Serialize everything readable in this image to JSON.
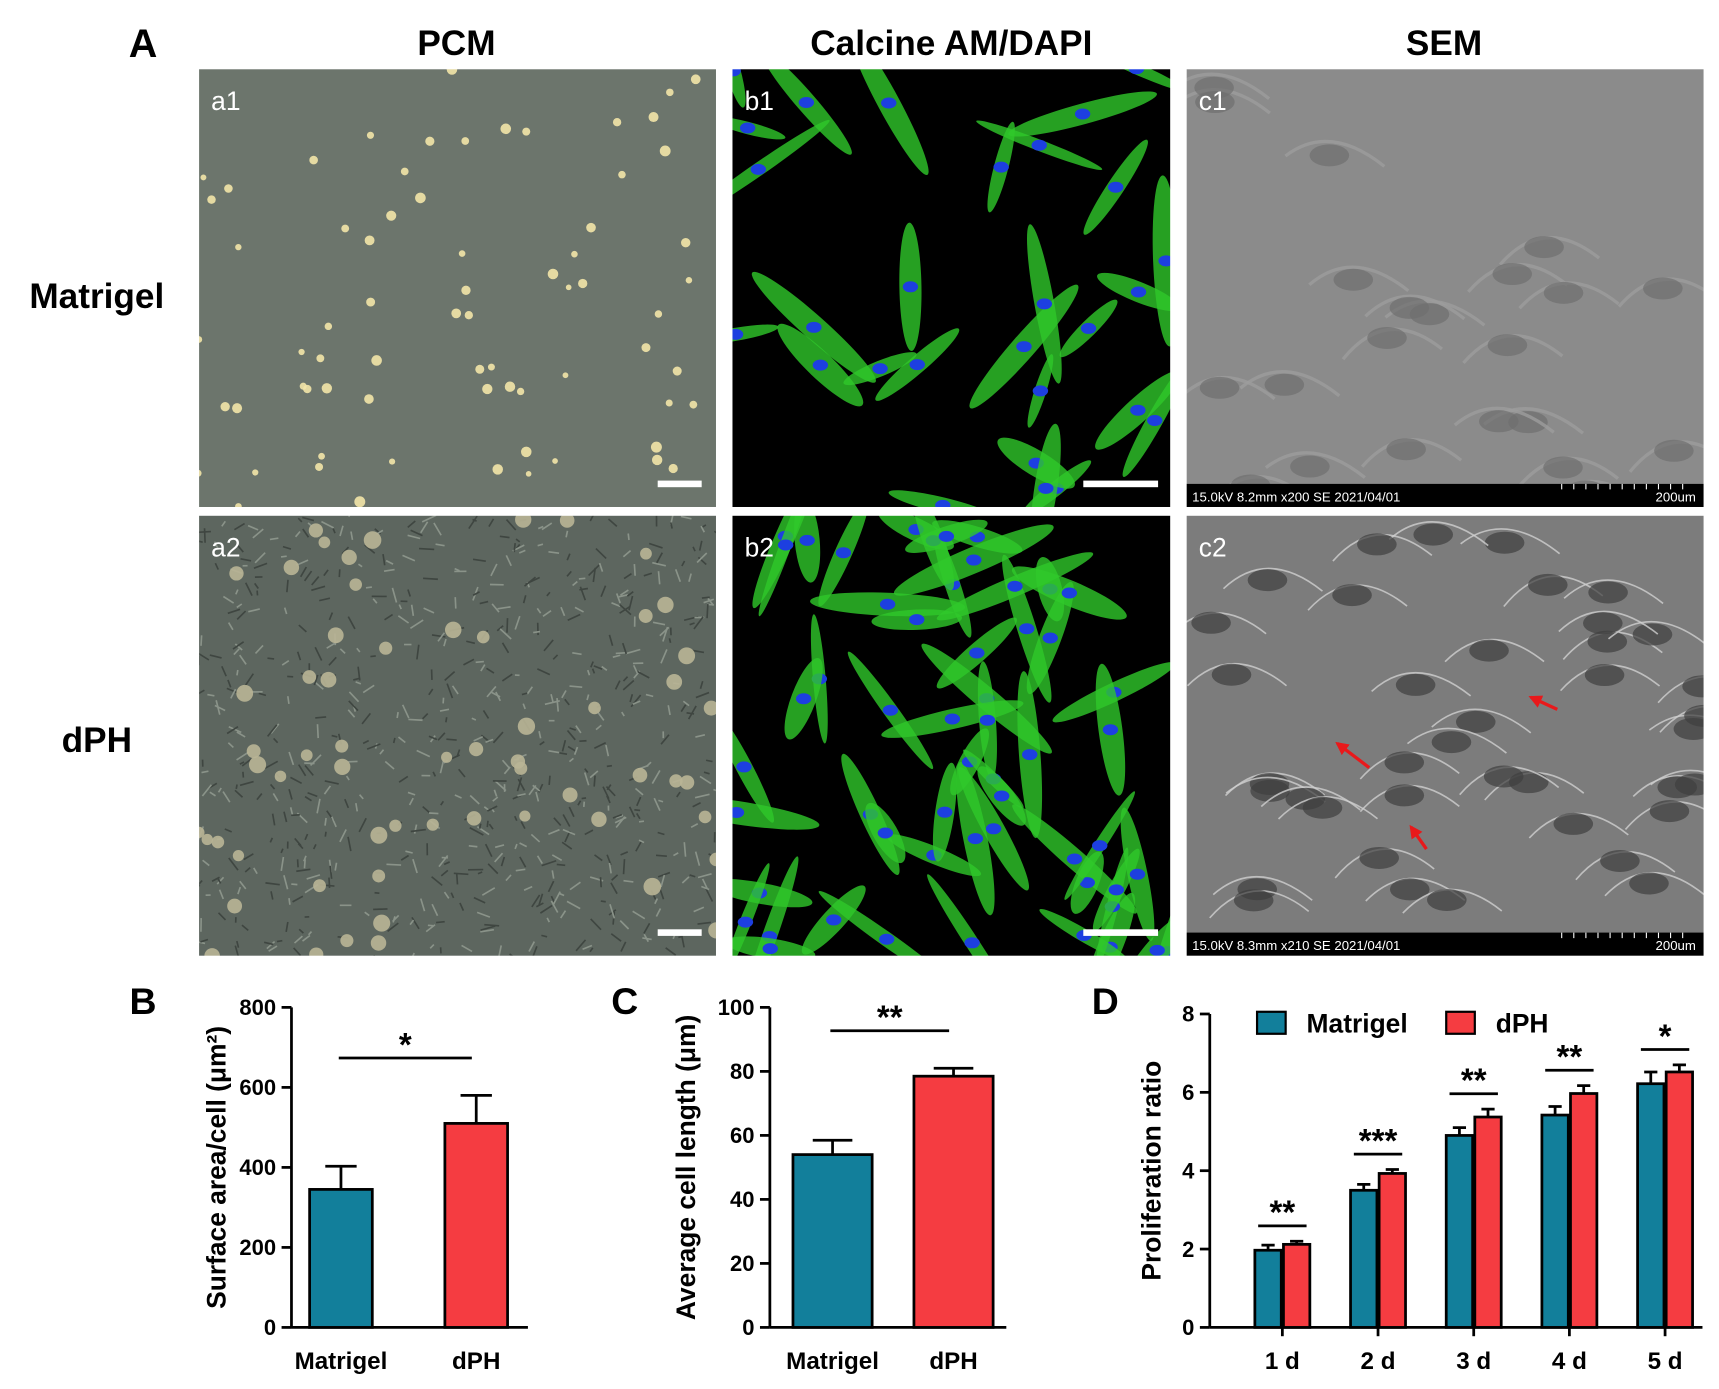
{
  "figure": {
    "panel_labels": [
      "A",
      "B",
      "C",
      "D"
    ],
    "columns": [
      "PCM",
      "Calcine AM/DAPI",
      "SEM"
    ],
    "rows": [
      "Matrigel",
      "dPH"
    ],
    "images": [
      {
        "label": "a1"
      },
      {
        "label": "b1"
      },
      {
        "label": "c1",
        "info": "15.0kV 8.2mm x200 SE 2021/04/01",
        "scale": "200um"
      },
      {
        "label": "a2"
      },
      {
        "label": "b2"
      },
      {
        "label": "c2",
        "info": "15.0kV 8.3mm x210 SE 2021/04/01",
        "scale": "200um"
      }
    ]
  },
  "chart_data": [
    {
      "type": "bar",
      "ylabel": "Surface area/cell (μm²)",
      "categories": [
        "Matrigel",
        "dPH"
      ],
      "values": [
        345,
        510
      ],
      "errors": [
        58,
        70
      ],
      "colors": [
        "#127f9b",
        "#f53c41"
      ],
      "ylim": [
        0,
        800
      ],
      "yticks": [
        0,
        200,
        400,
        600,
        800
      ],
      "significance": [
        "*"
      ]
    },
    {
      "type": "bar",
      "ylabel": "Average cell length (μm)",
      "categories": [
        "Matrigel",
        "dPH"
      ],
      "values": [
        54,
        78.5
      ],
      "errors": [
        4.5,
        2.5
      ],
      "colors": [
        "#127f9b",
        "#f53c41"
      ],
      "ylim": [
        0,
        100
      ],
      "yticks": [
        0,
        20,
        40,
        60,
        80,
        100
      ],
      "significance": [
        "**"
      ]
    },
    {
      "type": "grouped-bar",
      "ylabel": "Proliferation ratio",
      "categories": [
        "1 d",
        "2 d",
        "3 d",
        "4 d",
        "5 d"
      ],
      "series": [
        {
          "name": "Matrigel",
          "color": "#127f9b",
          "values": [
            1.97,
            3.5,
            4.9,
            5.42,
            6.22
          ],
          "errors": [
            0.13,
            0.15,
            0.2,
            0.22,
            0.3
          ]
        },
        {
          "name": "dPH",
          "color": "#f53c41",
          "values": [
            2.12,
            3.93,
            5.37,
            5.97,
            6.52
          ],
          "errors": [
            0.08,
            0.1,
            0.2,
            0.2,
            0.18
          ]
        }
      ],
      "ylim": [
        0,
        8
      ],
      "yticks": [
        0,
        2,
        4,
        6,
        8
      ],
      "legend": "top-left",
      "significance": [
        "**",
        "***",
        "**",
        "**",
        "*"
      ]
    }
  ]
}
